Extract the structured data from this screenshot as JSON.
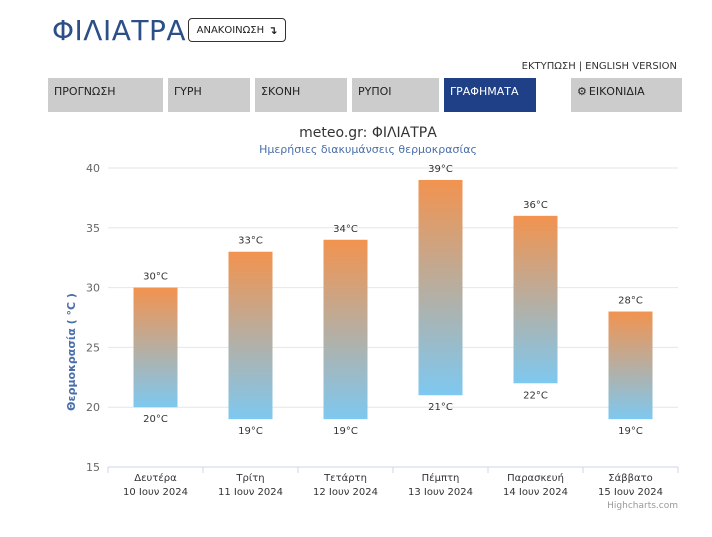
{
  "header": {
    "city": "ΦΙΛΙΑΤΡΑ",
    "announcement_label": "ΑΝΑΚΟΙΝΩΣΗ",
    "announcement_icon": "arrow-down-right-icon"
  },
  "top_links": {
    "print": "ΕΚΤΥΠΩΣΗ",
    "separator": "|",
    "english": "ENGLISH VERSION"
  },
  "tabs": [
    {
      "label": "ΠΡΟΓΝΩΣΗ",
      "active": false
    },
    {
      "label": "ΓΥΡΗ",
      "active": false
    },
    {
      "label": "ΣΚΟΝΗ",
      "active": false
    },
    {
      "label": "ΡΥΠΟΙ",
      "active": false
    },
    {
      "label": "ΓΡΑΦΗΜΑΤΑ",
      "active": true
    },
    {
      "label": "ΕΙΚΟΝΙΔΙΑ",
      "active": false,
      "icon": "gear-icon"
    }
  ],
  "colors": {
    "title_blue": "#2c4f88",
    "active_tab": "#1f3f86",
    "tab_gray": "#cccccc",
    "bar_top": "#f2934f",
    "bar_bottom": "#7ec8f0"
  },
  "chart_data": {
    "type": "bar",
    "subtype": "columnrange",
    "title": "meteo.gr: ΦΙΛΙΑΤΡΑ",
    "subtitle": "Ημερήσιες διακυμάνσεις θερμοκρασίας",
    "ylabel": "Θερμοκρασία ( °C )",
    "xlabel": "",
    "ylim": [
      15,
      40
    ],
    "yticks": [
      15,
      20,
      25,
      30,
      35,
      40
    ],
    "grid": true,
    "categories": [
      {
        "day": "Δευτέρα",
        "date": "10 Ιουν 2024"
      },
      {
        "day": "Τρίτη",
        "date": "11 Ιουν 2024"
      },
      {
        "day": "Τετάρτη",
        "date": "12 Ιουν 2024"
      },
      {
        "day": "Πέμπτη",
        "date": "13 Ιουν 2024"
      },
      {
        "day": "Παρασκευή",
        "date": "14 Ιουν 2024"
      },
      {
        "day": "Σάββατο",
        "date": "15 Ιουν 2024"
      }
    ],
    "low": [
      20,
      19,
      19,
      21,
      22,
      19
    ],
    "high": [
      30,
      33,
      34,
      39,
      36,
      28
    ],
    "unit": "°C",
    "credits": "Highcharts.com"
  }
}
